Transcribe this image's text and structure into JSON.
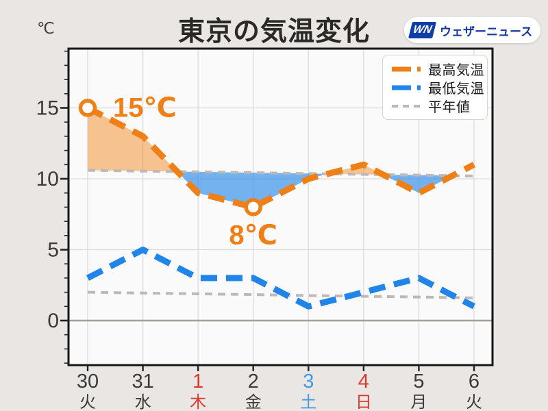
{
  "header": {
    "unit": "℃",
    "title": "東京の気温変化",
    "logo_wn": "WN",
    "logo_text": "ウェザーニュース"
  },
  "legend": {
    "items": [
      {
        "label": "最高気温"
      },
      {
        "label": "最低気温"
      },
      {
        "label": "平年値"
      }
    ]
  },
  "chart_data": {
    "type": "line",
    "title": "東京の気温変化",
    "unit": "℃",
    "ylim": [
      -3,
      19
    ],
    "yticks": [
      0,
      5,
      10,
      15
    ],
    "grid": true,
    "legend_position": "top-right",
    "days": [
      {
        "date": "30",
        "weekday": "火",
        "holiday": false,
        "saturday": false
      },
      {
        "date": "31",
        "weekday": "水",
        "holiday": false,
        "saturday": false
      },
      {
        "date": "1",
        "weekday": "木",
        "holiday": true,
        "saturday": false
      },
      {
        "date": "2",
        "weekday": "金",
        "holiday": false,
        "saturday": false
      },
      {
        "date": "3",
        "weekday": "土",
        "holiday": false,
        "saturday": true
      },
      {
        "date": "4",
        "weekday": "日",
        "holiday": true,
        "saturday": false
      },
      {
        "date": "5",
        "weekday": "月",
        "holiday": false,
        "saturday": false
      },
      {
        "date": "6",
        "weekday": "火",
        "holiday": false,
        "saturday": false
      }
    ],
    "series": [
      {
        "name": "最高気温",
        "values": [
          15,
          13,
          9,
          8,
          10,
          11,
          9,
          11
        ],
        "color": "#ef7f17",
        "style": "dashed-bold"
      },
      {
        "name": "最低気温",
        "values": [
          3,
          5,
          3,
          3,
          1,
          2,
          3,
          1
        ],
        "color": "#2084e8",
        "style": "dashed-bold"
      },
      {
        "name": "平年値(最高気温)",
        "values": [
          10.6,
          10.54,
          10.49,
          10.43,
          10.37,
          10.31,
          10.26,
          10.2
        ],
        "color": "#bcb9b6",
        "style": "dashed-thin"
      },
      {
        "name": "平年値(最低気温)",
        "values": [
          2.0,
          1.94,
          1.89,
          1.83,
          1.77,
          1.71,
          1.66,
          1.6
        ],
        "color": "#bcb9b6",
        "style": "dashed-thin"
      }
    ],
    "point_labels": [
      {
        "series": 0,
        "day_index": 0,
        "text": "15℃",
        "placement": "right"
      },
      {
        "series": 0,
        "day_index": 3,
        "text": "8℃",
        "placement": "below"
      }
    ],
    "colors": {
      "fill_above": "rgba(238,127,16,0.45)",
      "fill_below": "rgba(32,132,232,0.62)",
      "holiday": "#d93a2e",
      "saturday": "#3f9ae8",
      "tick_text": "#3a3a3a"
    }
  }
}
